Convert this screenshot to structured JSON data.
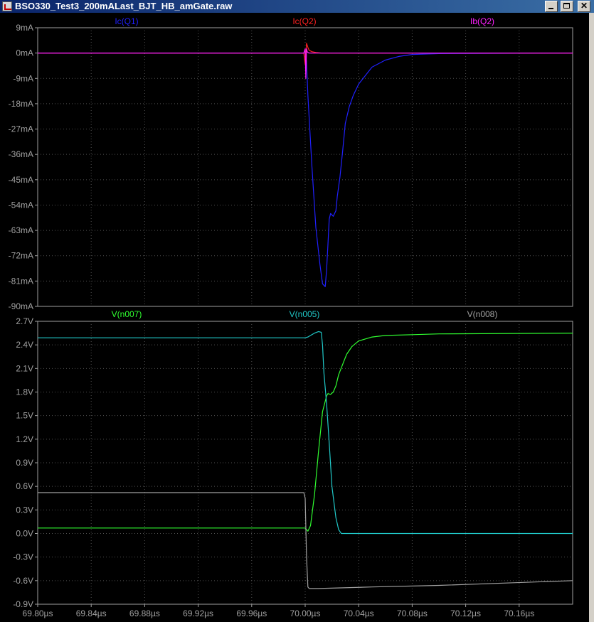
{
  "window": {
    "title": "BSO330_Test3_200mALast_BJT_HB_amGate.raw"
  },
  "colors": {
    "Ic(Q1)": "#2020ff",
    "Ic(Q2)": "#ff2020",
    "Ib(Q2)": "#ff20ff",
    "V(n007)": "#30ff30",
    "V(n005)": "#20c8c8",
    "V(n008)": "#a0a0a0",
    "grid": "#505050",
    "axis_text": "#a0a0a0"
  },
  "chart_data": [
    {
      "type": "line",
      "pane": "top",
      "xlim": [
        69.8,
        70.2
      ],
      "ylim": [
        -90,
        9
      ],
      "ytick_values": [
        9,
        0,
        -9,
        -18,
        -27,
        -36,
        -45,
        -54,
        -63,
        -72,
        -81,
        -90
      ],
      "ytick_labels": [
        "9mA",
        "0mA",
        "-9mA",
        "-18mA",
        "-27mA",
        "-36mA",
        "-45mA",
        "-54mA",
        "-63mA",
        "-72mA",
        "-81mA",
        "-90mA"
      ],
      "grid": true,
      "series": [
        {
          "name": "Ic(Q1)",
          "x": [
            69.8,
            70.0,
            70.001,
            70.002,
            70.005,
            70.008,
            70.011,
            70.013,
            70.015,
            70.016,
            70.017,
            70.018,
            70.019,
            70.021,
            70.023,
            70.024,
            70.026,
            70.028,
            70.03,
            70.033,
            70.036,
            70.04,
            70.045,
            70.05,
            70.06,
            70.07,
            70.08,
            70.1,
            70.2
          ],
          "y": [
            0,
            0,
            -3,
            -15,
            -40,
            -62,
            -75,
            -82,
            -83,
            -77,
            -68,
            -59,
            -57,
            -58,
            -56,
            -51,
            -44,
            -35,
            -25,
            -19,
            -15,
            -11,
            -8,
            -5,
            -2.5,
            -1.2,
            -0.5,
            -0.2,
            0
          ]
        },
        {
          "name": "Ic(Q2)",
          "x": [
            69.8,
            69.999,
            70.0,
            70.001,
            70.002,
            70.003,
            70.005,
            70.008,
            70.012,
            70.2
          ],
          "y": [
            0,
            0,
            -4,
            3.5,
            2,
            1,
            0.5,
            0.2,
            0,
            0
          ]
        },
        {
          "name": "Ib(Q2)",
          "x": [
            69.8,
            69.999,
            70.0,
            70.0005,
            70.001,
            70.0015,
            70.002,
            70.003,
            70.005,
            70.2
          ],
          "y": [
            0,
            0,
            1.5,
            -9,
            1.5,
            0.5,
            0.2,
            0,
            0,
            0
          ]
        }
      ]
    },
    {
      "type": "line",
      "pane": "bottom",
      "xlim": [
        69.8,
        70.2
      ],
      "ylim": [
        -0.9,
        2.7
      ],
      "xtick_values": [
        69.8,
        69.84,
        69.88,
        69.92,
        69.96,
        70.0,
        70.04,
        70.08,
        70.12,
        70.16
      ],
      "xtick_labels": [
        "69.80µs",
        "69.84µs",
        "69.88µs",
        "69.92µs",
        "69.96µs",
        "70.00µs",
        "70.04µs",
        "70.08µs",
        "70.12µs",
        "70.16µs"
      ],
      "ytick_values": [
        2.7,
        2.4,
        2.1,
        1.8,
        1.5,
        1.2,
        0.9,
        0.6,
        0.3,
        0.0,
        -0.3,
        -0.6,
        -0.9
      ],
      "ytick_labels": [
        "2.7V",
        "2.4V",
        "2.1V",
        "1.8V",
        "1.5V",
        "1.2V",
        "0.9V",
        "0.6V",
        "0.3V",
        "0.0V",
        "-0.3V",
        "-0.6V",
        "-0.9V"
      ],
      "grid": true,
      "series": [
        {
          "name": "V(n007)",
          "x": [
            69.8,
            70.0,
            70.001,
            70.002,
            70.004,
            70.007,
            70.01,
            70.013,
            70.016,
            70.017,
            70.019,
            70.021,
            70.023,
            70.025,
            70.028,
            70.031,
            70.035,
            70.04,
            70.05,
            70.06,
            70.08,
            70.1,
            70.2
          ],
          "y": [
            0.07,
            0.07,
            0.05,
            0.03,
            0.1,
            0.5,
            1.05,
            1.55,
            1.75,
            1.78,
            1.77,
            1.8,
            1.88,
            2.02,
            2.15,
            2.28,
            2.38,
            2.45,
            2.5,
            2.52,
            2.53,
            2.54,
            2.55
          ]
        },
        {
          "name": "V(n005)",
          "x": [
            69.8,
            70.0,
            70.002,
            70.004,
            70.007,
            70.01,
            70.012,
            70.013,
            70.014,
            70.016,
            70.018,
            70.02,
            70.023,
            70.025,
            70.027,
            70.03,
            70.2
          ],
          "y": [
            2.49,
            2.49,
            2.5,
            2.52,
            2.55,
            2.57,
            2.56,
            2.4,
            2.05,
            1.65,
            1.15,
            0.6,
            0.2,
            0.05,
            0.0,
            0.0,
            0.0
          ]
        },
        {
          "name": "V(n008)",
          "x": [
            69.8,
            69.999,
            70.0,
            70.001,
            70.002,
            70.003,
            70.01,
            70.05,
            70.1,
            70.15,
            70.2
          ],
          "y": [
            0.52,
            0.52,
            0.45,
            -0.3,
            -0.68,
            -0.7,
            -0.7,
            -0.68,
            -0.66,
            -0.63,
            -0.6
          ]
        }
      ]
    }
  ]
}
